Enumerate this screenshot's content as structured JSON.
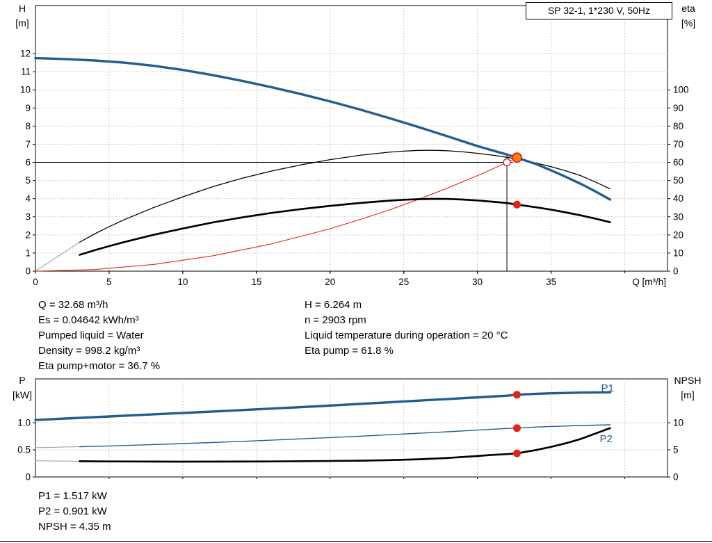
{
  "title_box": "SP 32-1, 1*230 V, 50Hz",
  "colors": {
    "blue": "#235d8f",
    "black": "#000000",
    "red": "#e2231a",
    "orange": "#ff7f00",
    "grey": "#9a9a9a",
    "grid": "#bbbbbb",
    "white": "#ffffff"
  },
  "chart_data": [
    {
      "id": "top",
      "type": "line",
      "x_axis": {
        "label": "Q [m³/h]",
        "min": 0,
        "max": 42.9,
        "show_labels": true,
        "ticks": [
          [
            0,
            "0"
          ],
          [
            5,
            "5"
          ],
          [
            10,
            "10"
          ],
          [
            15,
            "15"
          ],
          [
            20,
            "20"
          ],
          [
            25,
            "25"
          ],
          [
            30,
            "30"
          ],
          [
            35,
            "35"
          ]
        ],
        "grid": [
          5,
          10,
          15,
          20,
          25,
          30,
          35,
          40
        ]
      },
      "y_left": {
        "name": "H",
        "unit": "[m]",
        "min": 0,
        "max": 14.65,
        "ticks": [
          [
            0,
            "0"
          ],
          [
            1,
            "1"
          ],
          [
            2,
            "2"
          ],
          [
            3,
            "3"
          ],
          [
            4,
            "4"
          ],
          [
            5,
            "5"
          ],
          [
            6,
            "6"
          ],
          [
            7,
            "7"
          ],
          [
            8,
            "8"
          ],
          [
            9,
            "9"
          ],
          [
            10,
            "10"
          ],
          [
            11,
            "11"
          ],
          [
            12,
            "12"
          ]
        ],
        "grid": [
          1,
          2,
          3,
          4,
          5,
          6,
          7,
          8,
          9,
          10,
          11,
          12
        ]
      },
      "y_right": {
        "name": "eta",
        "unit": "[%]",
        "min": 0,
        "max": 146.5,
        "ticks": [
          [
            0,
            "0"
          ],
          [
            10,
            "10"
          ],
          [
            20,
            "20"
          ],
          [
            30,
            "30"
          ],
          [
            40,
            "40"
          ],
          [
            50,
            "50"
          ],
          [
            60,
            "60"
          ],
          [
            70,
            "70"
          ],
          [
            80,
            "80"
          ],
          [
            90,
            "90"
          ],
          [
            100,
            "100"
          ]
        ]
      },
      "ref_lines": [
        {
          "type": "h",
          "v": 6.0,
          "from": 0,
          "to": 32.4,
          "name": "duty-head-crosshair-line"
        },
        {
          "type": "v",
          "v": 32.0,
          "from": 0,
          "to": 6.35,
          "name": "duty-flow-crosshair-line"
        }
      ],
      "series": [
        {
          "name": "eta-pump-lead",
          "axis": "right",
          "color": "grey",
          "width": 1,
          "points": [
            [
              0,
              0
            ],
            [
              3,
              16
            ]
          ]
        },
        {
          "name": "system-curve",
          "axis": "left",
          "color": "red",
          "width": 1.1,
          "points": [
            [
              0,
              0
            ],
            [
              4,
              0.09
            ],
            [
              8,
              0.37
            ],
            [
              12,
              0.84
            ],
            [
              16,
              1.5
            ],
            [
              20,
              2.34
            ],
            [
              22,
              2.84
            ],
            [
              24,
              3.37
            ],
            [
              26,
              3.96
            ],
            [
              28,
              4.59
            ],
            [
              30,
              5.27
            ],
            [
              31,
              5.63
            ],
            [
              32,
              6.0
            ],
            [
              32.68,
              6.264
            ]
          ]
        },
        {
          "name": "eta-pump-curve",
          "axis": "right",
          "color": "black",
          "width": 1.3,
          "points": [
            [
              3,
              16
            ],
            [
              4,
              20.5
            ],
            [
              5,
              24.5
            ],
            [
              6,
              28.3
            ],
            [
              8,
              35
            ],
            [
              10,
              41
            ],
            [
              12,
              46.5
            ],
            [
              14,
              51.2
            ],
            [
              16,
              55.2
            ],
            [
              18,
              58.6
            ],
            [
              20,
              61.5
            ],
            [
              22,
              63.9
            ],
            [
              24,
              65.6
            ],
            [
              25,
              66.2
            ],
            [
              26,
              66.6
            ],
            [
              27,
              66.7
            ],
            [
              28,
              66.4
            ],
            [
              29,
              65.8
            ],
            [
              30,
              65
            ],
            [
              31,
              64
            ],
            [
              32,
              62.8
            ],
            [
              32.68,
              61.8
            ],
            [
              34,
              59.6
            ],
            [
              35,
              57.6
            ],
            [
              36,
              55.3
            ],
            [
              37,
              52.7
            ],
            [
              38,
              49.2
            ],
            [
              39,
              45.4
            ]
          ]
        },
        {
          "name": "eta-pump-motor-curve",
          "axis": "right",
          "color": "black",
          "width": 2.7,
          "points": [
            [
              3,
              9
            ],
            [
              4,
              11.5
            ],
            [
              5,
              13.8
            ],
            [
              6,
              16
            ],
            [
              8,
              20
            ],
            [
              10,
              23.5
            ],
            [
              12,
              26.8
            ],
            [
              14,
              29.6
            ],
            [
              16,
              32.1
            ],
            [
              18,
              34.2
            ],
            [
              20,
              36
            ],
            [
              22,
              37.6
            ],
            [
              24,
              38.9
            ],
            [
              25,
              39.4
            ],
            [
              26,
              39.7
            ],
            [
              27,
              39.9
            ],
            [
              28,
              39.8
            ],
            [
              29,
              39.5
            ],
            [
              30,
              39
            ],
            [
              31,
              38.3
            ],
            [
              32,
              37.6
            ],
            [
              32.68,
              36.7
            ],
            [
              34,
              35.2
            ],
            [
              35,
              33.9
            ],
            [
              36,
              32.4
            ],
            [
              37,
              30.8
            ],
            [
              38,
              29
            ],
            [
              39,
              27
            ]
          ]
        },
        {
          "name": "h-curve",
          "axis": "left",
          "color": "blue",
          "width": 3.4,
          "points": [
            [
              0,
              11.75
            ],
            [
              2,
              11.7
            ],
            [
              4,
              11.62
            ],
            [
              6,
              11.5
            ],
            [
              8,
              11.33
            ],
            [
              10,
              11.1
            ],
            [
              12,
              10.82
            ],
            [
              14,
              10.5
            ],
            [
              16,
              10.15
            ],
            [
              18,
              9.77
            ],
            [
              20,
              9.36
            ],
            [
              22,
              8.92
            ],
            [
              24,
              8.45
            ],
            [
              26,
              7.95
            ],
            [
              28,
              7.43
            ],
            [
              30,
              6.9
            ],
            [
              32,
              6.43
            ],
            [
              32.68,
              6.264
            ],
            [
              34,
              5.9
            ],
            [
              35,
              5.56
            ],
            [
              36,
              5.2
            ],
            [
              37,
              4.82
            ],
            [
              38,
              4.4
            ],
            [
              39,
              3.95
            ]
          ]
        }
      ],
      "markers": [
        {
          "name": "requested-duty-marker",
          "q": 32,
          "v": 6.0,
          "axis": "left",
          "r": 5,
          "fill": "white",
          "stroke": "red",
          "sw": 1.4,
          "drag": true
        },
        {
          "name": "duty-point-marker",
          "q": 32.68,
          "v": 6.264,
          "axis": "left",
          "r": 6.5,
          "fill": "orange",
          "stroke": "red",
          "sw": 1.8,
          "drag": true
        },
        {
          "name": "eta-duty-marker",
          "q": 32.68,
          "v": 36.7,
          "axis": "right",
          "r": 5.5,
          "fill": "red"
        }
      ],
      "labels": []
    },
    {
      "id": "bottom",
      "type": "line",
      "x_axis": {
        "label": "",
        "min": 0,
        "max": 42.9,
        "show_labels": false,
        "ticks": [],
        "grid": [
          5,
          10,
          15,
          20,
          25,
          30,
          35,
          40
        ]
      },
      "y_left": {
        "name": "P",
        "unit": "[kW]",
        "min": 0,
        "max": 1.808,
        "ticks": [
          [
            0,
            "0"
          ],
          [
            0.5,
            "0.5"
          ],
          [
            1,
            "1.0"
          ]
        ],
        "grid": [
          0.5,
          1
        ]
      },
      "y_right": {
        "name": "NPSH",
        "unit": "[m]",
        "min": 0,
        "max": 18.08,
        "ticks": [
          [
            0,
            "0"
          ],
          [
            5,
            "5"
          ],
          [
            10,
            "10"
          ]
        ]
      },
      "ref_lines": [],
      "series": [
        {
          "name": "p2-lead",
          "axis": "left",
          "color": "grey",
          "width": 1,
          "points": [
            [
              0,
              0.54
            ],
            [
              3,
              0.558
            ]
          ]
        },
        {
          "name": "npsh-lead",
          "axis": "right",
          "color": "grey",
          "width": 1,
          "points": [
            [
              0,
              2.98
            ],
            [
              3,
              2.9
            ]
          ]
        },
        {
          "name": "p2-curve",
          "axis": "left",
          "color": "blue",
          "width": 1.4,
          "points": [
            [
              3,
              0.558
            ],
            [
              5,
              0.572
            ],
            [
              8,
              0.597
            ],
            [
              10,
              0.615
            ],
            [
              13,
              0.645
            ],
            [
              16,
              0.678
            ],
            [
              19,
              0.714
            ],
            [
              22,
              0.752
            ],
            [
              25,
              0.792
            ],
            [
              28,
              0.834
            ],
            [
              30,
              0.864
            ],
            [
              32,
              0.894
            ],
            [
              32.68,
              0.901
            ],
            [
              34,
              0.921
            ],
            [
              35,
              0.931
            ],
            [
              37,
              0.949
            ],
            [
              39,
              0.962
            ]
          ]
        },
        {
          "name": "npsh-curve",
          "axis": "right",
          "color": "black",
          "width": 2.7,
          "points": [
            [
              3,
              2.9
            ],
            [
              5,
              2.86
            ],
            [
              8,
              2.83
            ],
            [
              10,
              2.82
            ],
            [
              13,
              2.83
            ],
            [
              16,
              2.86
            ],
            [
              19,
              2.92
            ],
            [
              22,
              3.0
            ],
            [
              24,
              3.1
            ],
            [
              26,
              3.26
            ],
            [
              28,
              3.5
            ],
            [
              30,
              3.86
            ],
            [
              31,
              4.07
            ],
            [
              32,
              4.2
            ],
            [
              32.68,
              4.35
            ],
            [
              34,
              4.98
            ],
            [
              35,
              5.55
            ],
            [
              36,
              6.2
            ],
            [
              37,
              7.0
            ],
            [
              38,
              8.0
            ],
            [
              39,
              9.0
            ]
          ]
        },
        {
          "name": "p1-curve",
          "axis": "left",
          "color": "blue",
          "width": 3.4,
          "points": [
            [
              0,
              1.05
            ],
            [
              3,
              1.09
            ],
            [
              5,
              1.115
            ],
            [
              8,
              1.155
            ],
            [
              10,
              1.18
            ],
            [
              13,
              1.22
            ],
            [
              16,
              1.26
            ],
            [
              19,
              1.302
            ],
            [
              22,
              1.347
            ],
            [
              25,
              1.392
            ],
            [
              28,
              1.437
            ],
            [
              30,
              1.468
            ],
            [
              32,
              1.498
            ],
            [
              32.68,
              1.517
            ],
            [
              34,
              1.533
            ],
            [
              35,
              1.543
            ],
            [
              37,
              1.555
            ],
            [
              39,
              1.562
            ]
          ]
        }
      ],
      "markers": [
        {
          "name": "p1-duty-marker",
          "q": 32.68,
          "v": 1.517,
          "axis": "left",
          "r": 5.5,
          "fill": "red"
        },
        {
          "name": "p2-duty-marker",
          "q": 32.68,
          "v": 0.901,
          "axis": "left",
          "r": 5.5,
          "fill": "red"
        },
        {
          "name": "npsh-duty-marker",
          "q": 32.68,
          "v": 4.35,
          "axis": "right",
          "r": 5.5,
          "fill": "red"
        }
      ],
      "labels": [
        {
          "text": "P1",
          "q": 38.4,
          "v": 1.58,
          "axis": "left",
          "color": "blue"
        },
        {
          "text": "P2",
          "q": 38.3,
          "v": 0.64,
          "axis": "left",
          "color": "blue"
        }
      ]
    }
  ],
  "info_top": {
    "left": [
      "Q = 32.68 m³/h",
      "Es = 0.04642 kWh/m³",
      "Pumped liquid = Water",
      "Density = 998.2 kg/m³",
      "Eta pump+motor = 36.7 %"
    ],
    "right": [
      "H = 6.264 m",
      "n = 2903 rpm",
      "Liquid temperature during operation = 20 °C",
      "Eta pump = 61.8 %"
    ]
  },
  "info_bottom": [
    "P1 = 1.517 kW",
    "P2 = 0.901 kW",
    "NPSH = 4.35 m"
  ]
}
